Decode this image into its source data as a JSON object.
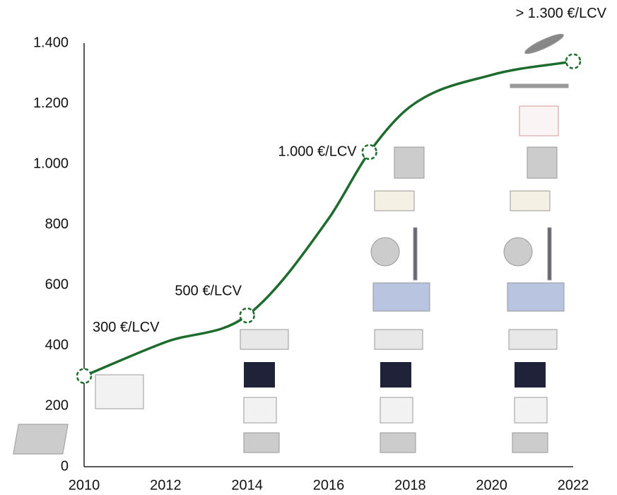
{
  "chart_data": {
    "type": "line",
    "x": [
      2010,
      2012,
      2014,
      2016,
      2017,
      2018,
      2020,
      2022
    ],
    "series": [
      {
        "color": "#1e6b2e",
        "values": [
          300,
          412,
          500,
          820,
          1040,
          1190,
          1295,
          1340
        ],
        "markers": [
          0,
          2,
          4,
          7
        ]
      }
    ],
    "annotations": [
      {
        "text": "300 €/LCV",
        "point": 0
      },
      {
        "text": "500 €/LCV",
        "point": 2
      },
      {
        "text": "1.000 €/LCV",
        "point": 4
      },
      {
        "text": "> 1.300 €/LCV",
        "point": 7
      }
    ],
    "xlim": [
      2010,
      2022
    ],
    "xticks": [
      2010,
      2012,
      2014,
      2016,
      2018,
      2020,
      2022
    ],
    "ylim": [
      0,
      1400
    ],
    "yticks": [
      0,
      200,
      400,
      600,
      800,
      {
        "value": 1000,
        "label": "1.000"
      },
      {
        "value": 1200,
        "label": "1.200"
      },
      {
        "value": 1400,
        "label": "1.400"
      }
    ],
    "grid": false
  }
}
